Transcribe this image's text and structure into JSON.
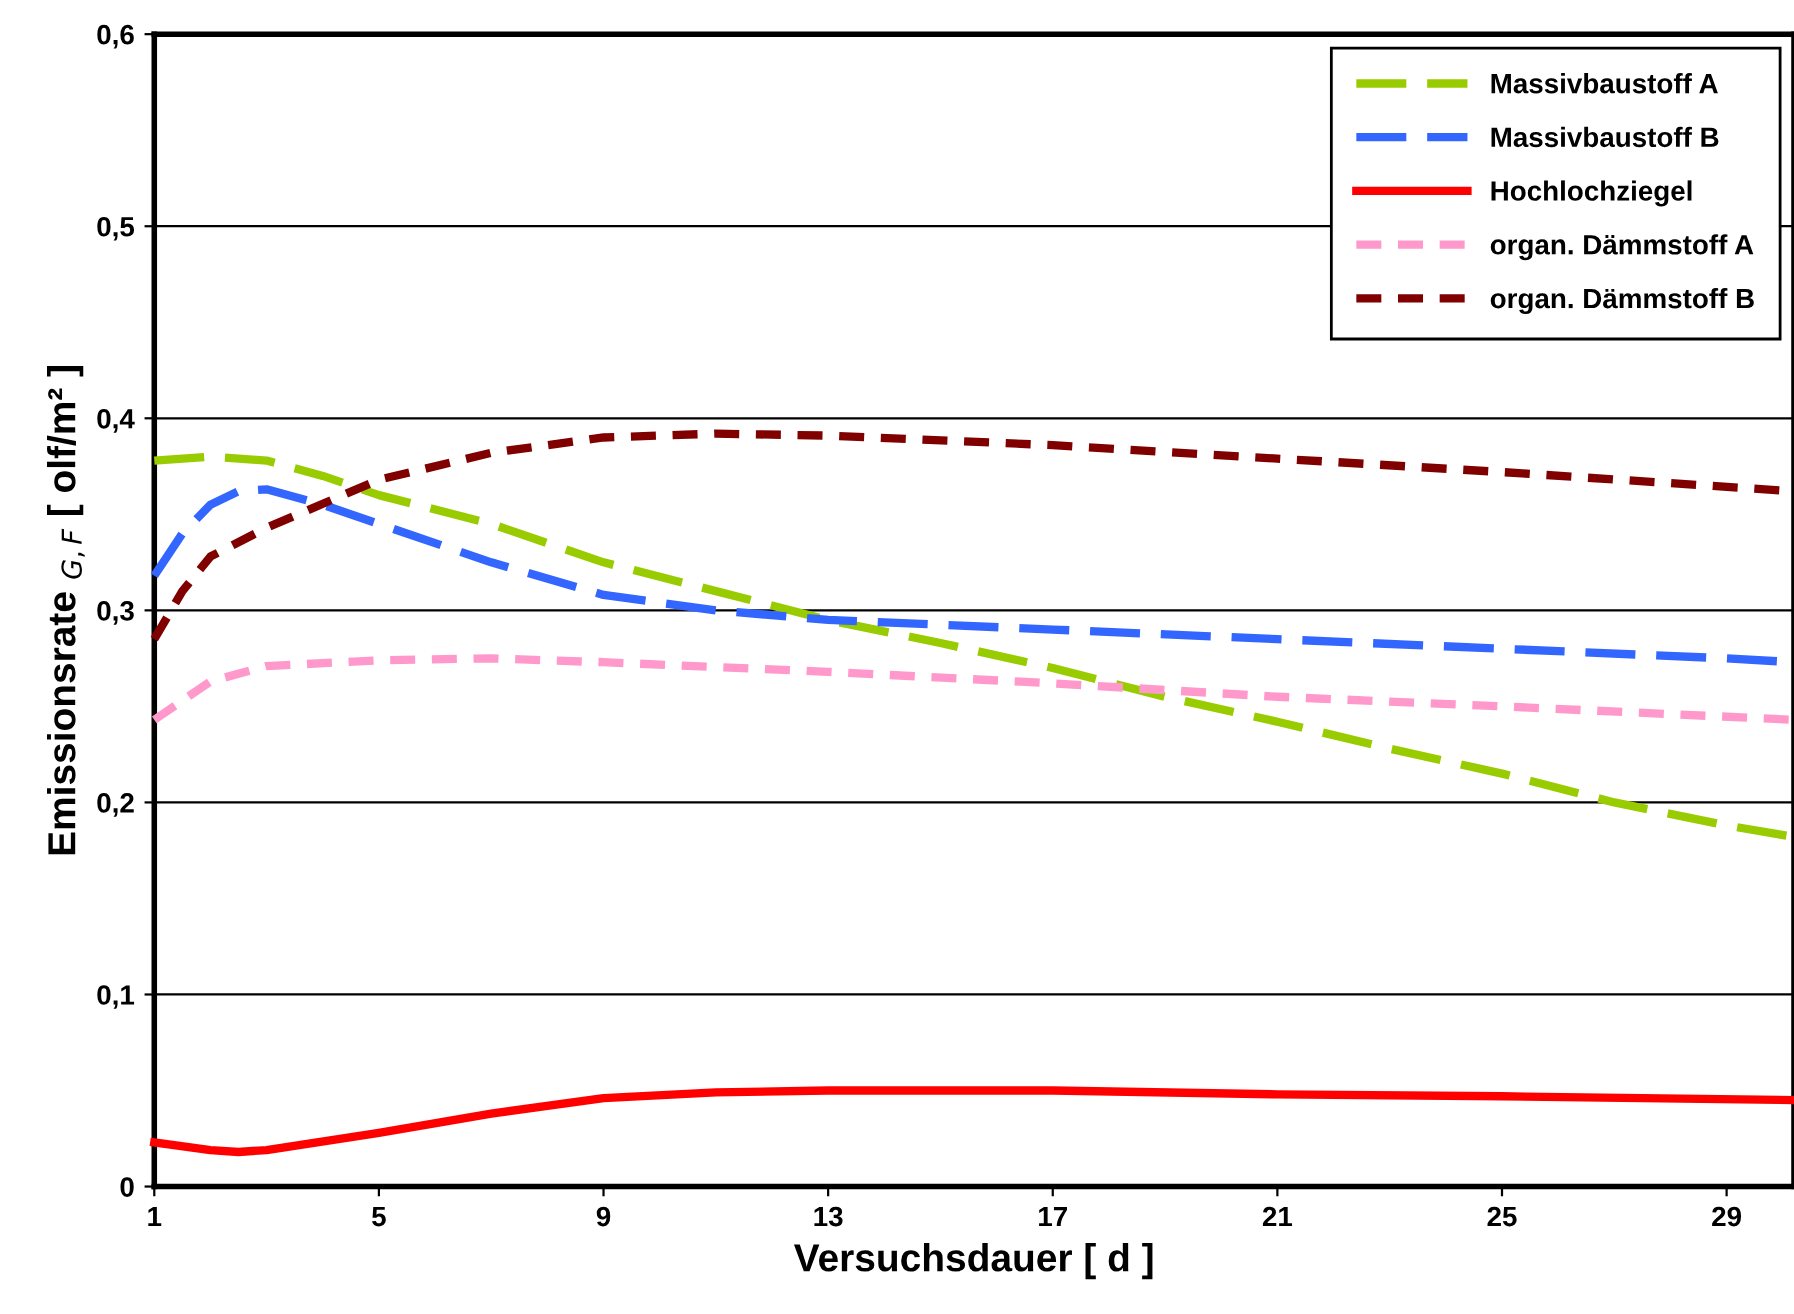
{
  "chart_data": {
    "type": "line",
    "xlabel": "Versuchsdauer [ d ]",
    "ylabel": "Emissionsrate $_{G,F}$ [ olf/m² ]",
    "xlim": [
      1,
      30.2
    ],
    "xticks": [
      1,
      5,
      9,
      13,
      17,
      21,
      25,
      29
    ],
    "ylim": [
      0,
      0.6
    ],
    "yticks": [
      {
        "value": 0,
        "label": "0"
      },
      {
        "value": 0.1,
        "label": "0,1"
      },
      {
        "value": 0.2,
        "label": "0,2"
      },
      {
        "value": 0.3,
        "label": "0,3"
      },
      {
        "value": 0.4,
        "label": "0,4"
      },
      {
        "value": 0.5,
        "label": "0,5"
      },
      {
        "value": 0.6,
        "label": "0,6"
      }
    ],
    "grid": "y",
    "legend": "top right",
    "marker": "none",
    "series": [
      {
        "name": "Massivbaustoff A",
        "color": "#99cc00",
        "line_style": "dashed",
        "x": [
          1,
          2,
          3,
          4,
          5,
          7,
          9,
          11,
          13,
          15,
          17,
          19,
          21,
          23,
          25,
          27,
          29,
          30.2
        ],
        "values": [
          0.378,
          0.38,
          0.378,
          0.37,
          0.36,
          0.345,
          0.325,
          0.31,
          0.295,
          0.283,
          0.27,
          0.255,
          0.242,
          0.228,
          0.215,
          0.2,
          0.188,
          0.182
        ]
      },
      {
        "name": "Massivbaustoff B",
        "color": "#3366ff",
        "line_style": "dashed",
        "x": [
          1,
          1.5,
          2,
          2.5,
          3,
          4,
          5,
          7,
          9,
          11,
          13,
          17,
          21,
          25,
          29,
          30.2
        ],
        "values": [
          0.318,
          0.34,
          0.355,
          0.362,
          0.363,
          0.355,
          0.345,
          0.325,
          0.308,
          0.3,
          0.295,
          0.29,
          0.285,
          0.28,
          0.275,
          0.273
        ]
      },
      {
        "name": "Hochlochziegel",
        "color": "#ff0000",
        "line_style": "solid",
        "x": [
          1,
          2,
          2.5,
          3,
          5,
          7,
          9,
          11,
          13,
          17,
          21,
          25,
          30.2
        ],
        "values": [
          0.023,
          0.019,
          0.018,
          0.019,
          0.028,
          0.038,
          0.046,
          0.049,
          0.05,
          0.05,
          0.048,
          0.047,
          0.045
        ]
      },
      {
        "name": "organ. Dämmstoff A",
        "color": "#ff99cc",
        "line_style": "dotted",
        "x": [
          1,
          2,
          3,
          5,
          7,
          9,
          13,
          17,
          21,
          25,
          30.2
        ],
        "values": [
          0.243,
          0.263,
          0.271,
          0.274,
          0.275,
          0.273,
          0.268,
          0.262,
          0.255,
          0.25,
          0.243
        ]
      },
      {
        "name": "organ. Dämmstoff B",
        "color": "#800000",
        "line_style": "dotted",
        "x": [
          1,
          1.5,
          2,
          3,
          5,
          7,
          9,
          11,
          13,
          17,
          21,
          25,
          30.2
        ],
        "values": [
          0.285,
          0.31,
          0.328,
          0.343,
          0.368,
          0.382,
          0.39,
          0.392,
          0.391,
          0.386,
          0.379,
          0.372,
          0.362
        ]
      }
    ]
  }
}
